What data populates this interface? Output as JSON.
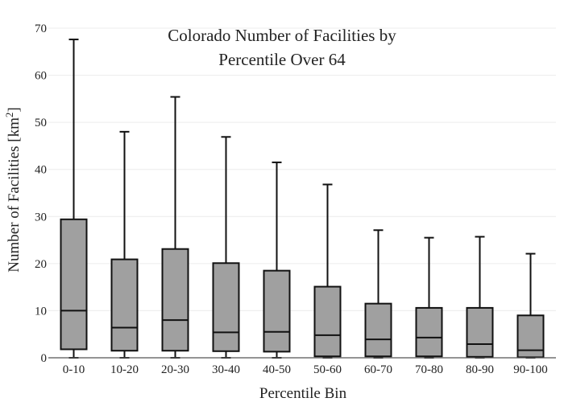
{
  "chart_data": {
    "type": "boxplot",
    "title_lines": [
      "Colorado Number of Facilities by",
      "Percentile Over 64"
    ],
    "xlabel": "Percentile Bin",
    "ylabel_main": "Number of Facilities  [km",
    "ylabel_sup": "2",
    "ylabel_end": "]",
    "ylim": [
      0,
      70
    ],
    "yticks": [
      "0",
      "10",
      "20",
      "30",
      "40",
      "50",
      "60",
      "70"
    ],
    "grid": true,
    "box_color": "#a0a0a0",
    "categories": [
      "0-10",
      "10-20",
      "20-30",
      "30-40",
      "40-50",
      "50-60",
      "60-70",
      "70-80",
      "80-90",
      "90-100"
    ],
    "boxes": [
      {
        "min": 0,
        "q1": 1.8,
        "median": 10.0,
        "q3": 29.4,
        "max": 67.6
      },
      {
        "min": 0,
        "q1": 1.5,
        "median": 6.4,
        "q3": 20.9,
        "max": 48.0
      },
      {
        "min": 0,
        "q1": 1.5,
        "median": 8.0,
        "q3": 23.1,
        "max": 55.4
      },
      {
        "min": 0,
        "q1": 1.4,
        "median": 5.4,
        "q3": 20.1,
        "max": 46.9
      },
      {
        "min": 0,
        "q1": 1.3,
        "median": 5.5,
        "q3": 18.5,
        "max": 41.5
      },
      {
        "min": 0,
        "q1": 0.3,
        "median": 4.8,
        "q3": 15.1,
        "max": 36.8
      },
      {
        "min": 0,
        "q1": 0.3,
        "median": 3.9,
        "q3": 11.5,
        "max": 27.1
      },
      {
        "min": 0,
        "q1": 0.3,
        "median": 4.3,
        "q3": 10.6,
        "max": 25.5
      },
      {
        "min": 0,
        "q1": 0.2,
        "median": 2.9,
        "q3": 10.6,
        "max": 25.7
      },
      {
        "min": 0,
        "q1": 0.1,
        "median": 1.6,
        "q3": 9.0,
        "max": 22.1
      }
    ]
  }
}
